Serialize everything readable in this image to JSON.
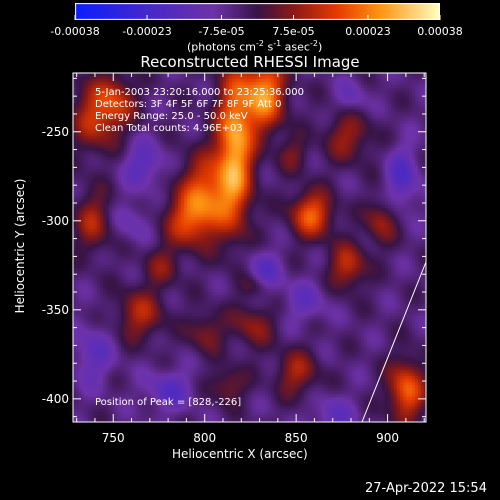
{
  "chart_data": {
    "type": "heatmap",
    "title": "Reconstructed RHESSI Image",
    "xlabel": "Heliocentric X (arcsec)",
    "ylabel": "Heliocentric Y (arcsec)",
    "xlim": [
      728,
      921
    ],
    "ylim": [
      -413,
      -217
    ],
    "x_ticks": [
      "750",
      "800",
      "850",
      "900"
    ],
    "x_tick_values": [
      750,
      800,
      850,
      900
    ],
    "y_ticks": [
      "-250",
      "-300",
      "-350",
      "-400"
    ],
    "y_tick_values": [
      -250,
      -300,
      -350,
      -400
    ],
    "colorbar": {
      "range": [
        -0.00038,
        0.00038
      ],
      "tick_labels": [
        "-0.00038",
        "-0.00023",
        "-7.5e-05",
        "7.5e-05",
        "0.00023",
        "0.00038"
      ],
      "tick_values": [
        -0.00038,
        -0.00023,
        -7.5e-05,
        7.5e-05,
        0.00023,
        0.00038
      ],
      "units": "(photons cm-2 s-1 asec-2)"
    },
    "annotations": [
      "5-Jan-2003 23:20:16.000 to 23:25:36.000",
      "Detectors: 3F 4F 5F 6F 7F 8F 9F  Att 0",
      "Energy Range: 25.0 - 50.0 keV",
      "Clean     Total counts: 4.96E+03"
    ],
    "peak_label": "Position of Peak = [828,-226]",
    "peak": [
      828,
      -226
    ],
    "blobs": [
      {
        "x": 816,
        "y": -258,
        "sx": 7,
        "sy": 30,
        "v": 0.00032
      },
      {
        "x": 832,
        "y": -228,
        "sx": 8,
        "sy": 14,
        "v": 0.0003
      },
      {
        "x": 800,
        "y": -285,
        "sx": 10,
        "sy": 15,
        "v": 0.00024
      },
      {
        "x": 790,
        "y": -300,
        "sx": 9,
        "sy": 10,
        "v": 0.00016
      },
      {
        "x": 858,
        "y": -296,
        "sx": 8,
        "sy": 9,
        "v": 0.00024
      },
      {
        "x": 878,
        "y": -252,
        "sx": 9,
        "sy": 10,
        "v": 0.00013
      },
      {
        "x": 878,
        "y": -325,
        "sx": 7,
        "sy": 9,
        "v": 0.00017
      },
      {
        "x": 740,
        "y": -240,
        "sx": 9,
        "sy": 14,
        "v": 0.00018
      },
      {
        "x": 752,
        "y": -232,
        "sx": 7,
        "sy": 10,
        "v": 0.00014
      },
      {
        "x": 738,
        "y": -300,
        "sx": 7,
        "sy": 12,
        "v": 0.00014
      },
      {
        "x": 764,
        "y": -352,
        "sx": 9,
        "sy": 10,
        "v": 0.00015
      },
      {
        "x": 800,
        "y": -362,
        "sx": 7,
        "sy": 8,
        "v": 0.00011
      },
      {
        "x": 826,
        "y": -358,
        "sx": 8,
        "sy": 9,
        "v": 0.00012
      },
      {
        "x": 850,
        "y": -385,
        "sx": 8,
        "sy": 9,
        "v": 0.00014
      },
      {
        "x": 910,
        "y": -395,
        "sx": 7,
        "sy": 12,
        "v": 0.00024
      },
      {
        "x": 896,
        "y": -300,
        "sx": 6,
        "sy": 9,
        "v": 0.00013
      },
      {
        "x": 828,
        "y": -336,
        "sx": 6,
        "sy": 5,
        "v": 0.0001
      },
      {
        "x": 812,
        "y": -392,
        "sx": 7,
        "sy": 7,
        "v": 0.00011
      },
      {
        "x": 848,
        "y": -262,
        "sx": 6,
        "sy": 7,
        "v": 9e-05
      },
      {
        "x": 776,
        "y": -325,
        "sx": 7,
        "sy": 8,
        "v": 0.0001
      },
      {
        "x": 766,
        "y": -268,
        "sx": 8,
        "sy": 9,
        "v": -0.00012
      },
      {
        "x": 832,
        "y": -330,
        "sx": 7,
        "sy": 9,
        "v": -0.00013
      },
      {
        "x": 908,
        "y": -275,
        "sx": 6,
        "sy": 12,
        "v": -0.00014
      },
      {
        "x": 738,
        "y": -375,
        "sx": 8,
        "sy": 12,
        "v": -0.0001
      },
      {
        "x": 780,
        "y": -395,
        "sx": 9,
        "sy": 8,
        "v": -0.00012
      },
      {
        "x": 855,
        "y": -345,
        "sx": 8,
        "sy": 8,
        "v": -9e-05
      },
      {
        "x": 870,
        "y": -410,
        "sx": 8,
        "sy": 8,
        "v": -0.0001
      },
      {
        "x": 760,
        "y": -300,
        "sx": 7,
        "sy": 8,
        "v": -7e-05
      },
      {
        "x": 880,
        "y": -230,
        "sx": 6,
        "sy": 7,
        "v": -8e-05
      }
    ]
  },
  "footer": {
    "timestamp": "27-Apr-2022 15:54"
  }
}
